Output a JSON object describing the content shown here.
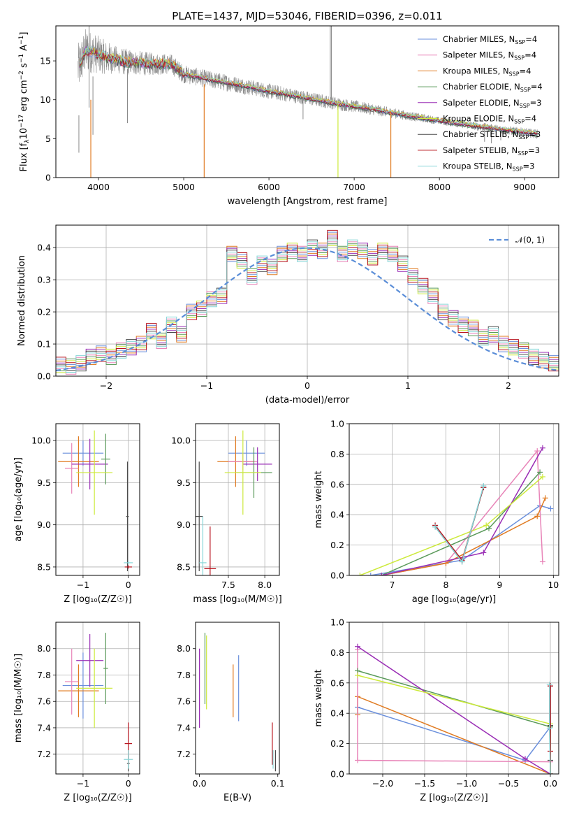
{
  "colors": {
    "chabrier_miles": "#6a8fdc",
    "salpeter_miles": "#e884b8",
    "kroupa_miles": "#e07b22",
    "chabrier_elodie": "#5a9a5a",
    "salpeter_elodie": "#9a2eb5",
    "kroupa_elodie": "#cdea3c",
    "chabrier_stelib": "#4a4a4a",
    "salpeter_stelib": "#b8141e",
    "kroupa_stelib": "#86d6d8",
    "observed": "#8a8a8a",
    "normal": "#5b8ed8"
  },
  "chart_data": [
    {
      "id": "spectrum",
      "type": "line",
      "title": "PLATE=1437, MJD=53046, FIBERID=0396, z=0.011",
      "xlabel": "wavelength [Angstrom, rest frame]",
      "ylabel_parts": [
        "Flux [f",
        "λ",
        "10",
        "−17",
        " erg cm",
        "−2",
        " s",
        "−1",
        " A",
        "−1",
        "]"
      ],
      "xlim": [
        3500,
        9400
      ],
      "ylim": [
        0,
        19.5
      ],
      "xticks": [
        4000,
        5000,
        6000,
        7000,
        8000,
        9000
      ],
      "yticks": [
        0,
        5,
        10,
        15
      ],
      "legend_loc": "upper right",
      "legend": [
        {
          "key": "chabrier_miles",
          "text": "Chabrier MILES, N",
          "sub": "SSP",
          "tail": "=4"
        },
        {
          "key": "salpeter_miles",
          "text": "Salpeter MILES, N",
          "sub": "SSP",
          "tail": "=4"
        },
        {
          "key": "kroupa_miles",
          "text": "Kroupa MILES, N",
          "sub": "SSP",
          "tail": "=4"
        },
        {
          "key": "chabrier_elodie",
          "text": "Chabrier ELODIE, N",
          "sub": "SSP",
          "tail": "=4"
        },
        {
          "key": "salpeter_elodie",
          "text": "Salpeter ELODIE, N",
          "sub": "SSP",
          "tail": "=3"
        },
        {
          "key": "kroupa_elodie",
          "text": "Kroupa ELODIE, N",
          "sub": "SSP",
          "tail": "=4"
        },
        {
          "key": "chabrier_stelib",
          "text": "Chabrier STELIB, N",
          "sub": "SSP",
          "tail": "=3"
        },
        {
          "key": "salpeter_stelib",
          "text": "Salpeter STELIB, N",
          "sub": "SSP",
          "tail": "=3"
        },
        {
          "key": "kroupa_stelib",
          "text": "Kroupa STELIB, N",
          "sub": "SSP",
          "tail": "=3"
        }
      ],
      "observed_trend": [
        [
          3760,
          14.0
        ],
        [
          3850,
          16.3
        ],
        [
          3950,
          16.0
        ],
        [
          4100,
          15.4
        ],
        [
          4300,
          14.9
        ],
        [
          4600,
          14.6
        ],
        [
          4850,
          14.6
        ],
        [
          5000,
          13.3
        ],
        [
          5300,
          12.6
        ],
        [
          5600,
          12.0
        ],
        [
          6000,
          11.1
        ],
        [
          6400,
          10.3
        ],
        [
          6800,
          9.5
        ],
        [
          7200,
          8.8
        ],
        [
          7600,
          8.0
        ],
        [
          8000,
          7.3
        ],
        [
          8500,
          6.5
        ],
        [
          9000,
          5.8
        ],
        [
          9150,
          5.6
        ]
      ],
      "observed_noise": [
        [
          3760,
          3.2
        ],
        [
          4200,
          1.8
        ],
        [
          5000,
          1.2
        ],
        [
          6000,
          1.0
        ],
        [
          7000,
          0.8
        ],
        [
          8000,
          0.5
        ],
        [
          9150,
          0.6
        ]
      ],
      "spikes": [
        {
          "x": 3770,
          "y0": 8,
          "y1": 3.2
        },
        {
          "x": 3890,
          "y0": 9,
          "y1": 19.5
        },
        {
          "x": 3935,
          "y0": 13,
          "y1": 5.5
        },
        {
          "x": 4340,
          "y0": 14,
          "y1": 7.0
        },
        {
          "x": 6400,
          "y0": 11,
          "y1": 7.5
        },
        {
          "x": 6720,
          "y0": 10,
          "y1": 19.5
        },
        {
          "x": 6733,
          "y0": 10,
          "y1": 19.5
        },
        {
          "x": 8530,
          "y0": 6.5,
          "y1": 4.6
        },
        {
          "x": 8610,
          "y0": 6.4,
          "y1": 4.4
        },
        {
          "x": 8720,
          "y0": 6.0,
          "y1": 4.8
        }
      ],
      "model_drops": [
        {
          "key": "kroupa_miles",
          "x": 3910,
          "y0": 10,
          "y1": 0
        },
        {
          "key": "kroupa_miles",
          "x": 5240,
          "y0": 12,
          "y1": 0
        },
        {
          "key": "kroupa_elodie",
          "x": 6810,
          "y0": 9.5,
          "y1": 0
        },
        {
          "key": "kroupa_miles",
          "x": 7430,
          "y0": 8.5,
          "y1": 0
        }
      ]
    },
    {
      "id": "residuals",
      "type": "line",
      "xlabel": "(data-model)/error",
      "ylabel": "Normed distribution",
      "xlim": [
        -2.5,
        2.5
      ],
      "ylim": [
        0,
        0.47
      ],
      "xticks": [
        -2,
        -1,
        0,
        1,
        2
      ],
      "yticks": [
        0.0,
        0.1,
        0.2,
        0.3,
        0.4
      ],
      "grid": true,
      "legend_loc": "upper right",
      "legend_text": "𝒩(0, 1)",
      "bin_width": 0.1,
      "bin_start": -2.6,
      "series_keys": [
        "chabrier_miles",
        "salpeter_miles",
        "kroupa_miles",
        "chabrier_elodie",
        "salpeter_elodie",
        "kroupa_elodie",
        "chabrier_stelib",
        "salpeter_stelib",
        "kroupa_stelib"
      ],
      "base_hist": [
        0.03,
        0.035,
        0.03,
        0.04,
        0.06,
        0.07,
        0.06,
        0.08,
        0.09,
        0.1,
        0.14,
        0.11,
        0.16,
        0.13,
        0.2,
        0.21,
        0.24,
        0.25,
        0.38,
        0.36,
        0.31,
        0.35,
        0.34,
        0.38,
        0.39,
        0.38,
        0.4,
        0.39,
        0.43,
        0.38,
        0.4,
        0.39,
        0.37,
        0.39,
        0.38,
        0.35,
        0.31,
        0.28,
        0.25,
        0.2,
        0.18,
        0.16,
        0.15,
        0.12,
        0.13,
        0.1,
        0.09,
        0.08,
        0.06,
        0.05,
        0.04,
        0.04,
        0.03
      ]
    },
    {
      "id": "age_vs_Z",
      "type": "scatter",
      "xlabel": "Z [log₁₀(Z/Z☉)]",
      "ylabel": "age  [log₁₀(age/yr)]",
      "xlim": [
        -1.6,
        0.25
      ],
      "ylim": [
        8.4,
        10.2
      ],
      "xticks": [
        -1,
        0
      ],
      "yticks": [
        8.5,
        9.0,
        9.5,
        10.0
      ],
      "grid": true,
      "points": [
        {
          "key": "chabrier_miles",
          "x": -1.0,
          "xerr": 0.45,
          "y": 9.85,
          "yerr": 0.15
        },
        {
          "key": "kroupa_miles",
          "x": -1.1,
          "xerr": 0.45,
          "y": 9.75,
          "yerr": 0.3
        },
        {
          "key": "salpeter_miles",
          "x": -1.25,
          "xerr": 0.15,
          "y": 9.67,
          "yerr": 0.3
        },
        {
          "key": "salpeter_elodie",
          "x": -0.85,
          "xerr": 0.4,
          "y": 9.72,
          "yerr": 0.3
        },
        {
          "key": "chabrier_elodie",
          "x": -0.5,
          "xerr": 0.1,
          "y": 9.78,
          "yerr": 0.3
        },
        {
          "key": "kroupa_elodie",
          "x": -0.75,
          "xerr": 0.4,
          "y": 9.62,
          "yerr": 0.5
        },
        {
          "key": "chabrier_stelib",
          "x": -0.02,
          "xerr": 0.03,
          "y": 9.1,
          "yerr": 0.65
        },
        {
          "key": "salpeter_stelib",
          "x": 0.0,
          "xerr": 0.08,
          "y": 8.5,
          "yerr": 0.02
        },
        {
          "key": "kroupa_stelib",
          "x": 0.0,
          "xerr": 0.1,
          "y": 8.55,
          "yerr": 0.02
        }
      ]
    },
    {
      "id": "age_vs_mass",
      "type": "scatter",
      "xlabel": "mass [log₁₀(M/M☉)]",
      "xlim": [
        7.05,
        8.2
      ],
      "ylim": [
        8.4,
        10.2
      ],
      "xticks": [
        7.5,
        8.0
      ],
      "yticks": [
        8.5,
        9.0,
        9.5,
        10.0
      ],
      "grid": true,
      "points": [
        {
          "key": "chabrier_miles",
          "x": 7.75,
          "xerr": 0.25,
          "y": 9.85,
          "yerr": 0.15
        },
        {
          "key": "kroupa_miles",
          "x": 7.6,
          "xerr": 0.25,
          "y": 9.75,
          "yerr": 0.3
        },
        {
          "key": "salpeter_miles",
          "x": 7.7,
          "xerr": 0.2,
          "y": 9.75,
          "yerr": 0.1
        },
        {
          "key": "salpeter_elodie",
          "x": 7.9,
          "xerr": 0.2,
          "y": 9.72,
          "yerr": 0.2
        },
        {
          "key": "chabrier_elodie",
          "x": 7.85,
          "xerr": 0.25,
          "y": 9.62,
          "yerr": 0.3
        },
        {
          "key": "kroupa_elodie",
          "x": 7.7,
          "xerr": 0.25,
          "y": 9.62,
          "yerr": 0.5
        },
        {
          "key": "chabrier_stelib",
          "x": 7.1,
          "xerr": 0.05,
          "y": 9.1,
          "yerr": 0.65
        },
        {
          "key": "salpeter_stelib",
          "x": 7.25,
          "xerr": 0.08,
          "y": 8.48,
          "yerr": 0.5
        },
        {
          "key": "kroupa_stelib",
          "x": 7.15,
          "xerr": 0.05,
          "y": 8.55,
          "yerr": 0.55
        }
      ]
    },
    {
      "id": "weight_vs_age",
      "type": "line",
      "xlabel": "age  [log₁₀(age/yr)]",
      "ylabel": "mass weight",
      "xlim": [
        6.2,
        10.1
      ],
      "ylim": [
        0.0,
        1.0
      ],
      "xticks": [
        7,
        8,
        9,
        10
      ],
      "yticks": [
        0.0,
        0.2,
        0.4,
        0.6,
        0.8,
        1.0
      ],
      "grid": true,
      "series": [
        {
          "key": "chabrier_miles",
          "x": [
            6.6,
            8.3,
            9.75,
            9.95
          ],
          "y": [
            0.0,
            0.1,
            0.46,
            0.44
          ]
        },
        {
          "key": "salpeter_miles",
          "x": [
            6.8,
            8.0,
            9.7,
            9.8
          ],
          "y": [
            0.0,
            0.08,
            0.82,
            0.09
          ]
        },
        {
          "key": "kroupa_miles",
          "x": [
            6.8,
            8.0,
            9.7,
            9.85
          ],
          "y": [
            0.0,
            0.08,
            0.39,
            0.51
          ]
        },
        {
          "key": "chabrier_elodie",
          "x": [
            6.8,
            8.8,
            9.75
          ],
          "y": [
            0.0,
            0.31,
            0.68
          ]
        },
        {
          "key": "salpeter_elodie",
          "x": [
            6.8,
            8.7,
            9.8
          ],
          "y": [
            0.0,
            0.15,
            0.84
          ]
        },
        {
          "key": "kroupa_elodie",
          "x": [
            6.4,
            8.75,
            9.8
          ],
          "y": [
            0.0,
            0.33,
            0.65
          ]
        },
        {
          "key": "chabrier_stelib",
          "x": [
            7.8,
            8.3,
            8.7
          ],
          "y": [
            0.32,
            0.09,
            0.58
          ]
        },
        {
          "key": "salpeter_stelib",
          "x": [
            7.8,
            8.3,
            8.7
          ],
          "y": [
            0.33,
            0.1,
            0.58
          ]
        },
        {
          "key": "kroupa_stelib",
          "x": [
            7.8,
            8.3,
            8.7
          ],
          "y": [
            0.32,
            0.09,
            0.59
          ]
        }
      ]
    },
    {
      "id": "mass_vs_Z",
      "type": "scatter",
      "xlabel": "Z [log₁₀(Z/Z☉)]",
      "ylabel": "mass [log₁₀(M/M☉)]",
      "xlim": [
        -1.6,
        0.25
      ],
      "ylim": [
        7.05,
        8.2
      ],
      "xticks": [
        -1,
        0
      ],
      "yticks": [
        7.2,
        7.4,
        7.6,
        7.8,
        8.0
      ],
      "grid": true,
      "points": [
        {
          "key": "chabrier_miles",
          "x": -1.0,
          "xerr": 0.45,
          "y": 7.72,
          "yerr": 0.25
        },
        {
          "key": "kroupa_miles",
          "x": -1.1,
          "xerr": 0.45,
          "y": 7.68,
          "yerr": 0.2
        },
        {
          "key": "salpeter_miles",
          "x": -1.25,
          "xerr": 0.15,
          "y": 7.75,
          "yerr": 0.25
        },
        {
          "key": "salpeter_elodie",
          "x": -0.85,
          "xerr": 0.3,
          "y": 7.91,
          "yerr": 0.2
        },
        {
          "key": "chabrier_elodie",
          "x": -0.5,
          "xerr": 0.05,
          "y": 7.85,
          "yerr": 0.27
        },
        {
          "key": "kroupa_elodie",
          "x": -0.75,
          "xerr": 0.4,
          "y": 7.7,
          "yerr": 0.3
        },
        {
          "key": "chabrier_stelib",
          "x": 0.0,
          "xerr": 0.03,
          "y": 7.13,
          "yerr": 0.06
        },
        {
          "key": "salpeter_stelib",
          "x": 0.0,
          "xerr": 0.08,
          "y": 7.28,
          "yerr": 0.16
        },
        {
          "key": "kroupa_stelib",
          "x": 0.0,
          "xerr": 0.1,
          "y": 7.16,
          "yerr": 0.07
        }
      ]
    },
    {
      "id": "mass_vs_ebv",
      "type": "scatter",
      "xlabel": "E(B-V)",
      "xlim": [
        -0.005,
        0.102
      ],
      "ylim": [
        7.05,
        8.2
      ],
      "xticks": [
        0.0,
        0.1
      ],
      "yticks": [
        7.2,
        7.4,
        7.6,
        7.8,
        8.0
      ],
      "grid": false,
      "points": [
        {
          "key": "salpeter_elodie",
          "x": 0.0,
          "y": 7.7,
          "yerr": 0.3
        },
        {
          "key": "chabrier_elodie",
          "x": 0.007,
          "y": 7.85,
          "yerr": 0.27
        },
        {
          "key": "kroupa_elodie",
          "x": 0.009,
          "y": 7.82,
          "yerr": 0.28
        },
        {
          "key": "kroupa_miles",
          "x": 0.043,
          "y": 7.68,
          "yerr": 0.2
        },
        {
          "key": "chabrier_miles",
          "x": 0.05,
          "y": 7.7,
          "yerr": 0.25
        },
        {
          "key": "salpeter_stelib",
          "x": 0.093,
          "y": 7.28,
          "yerr": 0.16
        },
        {
          "key": "kroupa_stelib",
          "x": 0.094,
          "y": 7.16,
          "yerr": 0.07
        },
        {
          "key": "chabrier_stelib",
          "x": 0.097,
          "y": 7.15,
          "yerr": 0.08
        }
      ]
    },
    {
      "id": "weight_vs_Z",
      "type": "line",
      "xlabel": "Z [log₁₀(Z/Z☉)]",
      "ylabel": "mass weight",
      "xlim": [
        -2.4,
        0.1
      ],
      "ylim": [
        0.0,
        1.0
      ],
      "xticks": [
        -2.0,
        -1.5,
        -1.0,
        -0.5,
        0.0
      ],
      "yticks": [
        0.0,
        0.2,
        0.4,
        0.6,
        0.8,
        1.0
      ],
      "grid": true,
      "series": [
        {
          "key": "chabrier_miles",
          "x": [
            -2.3,
            -0.3,
            0.0
          ],
          "y": [
            0.44,
            0.09,
            0.31
          ]
        },
        {
          "key": "kroupa_miles",
          "x": [
            -2.3,
            -2.3,
            0.0
          ],
          "y": [
            0.39,
            0.51,
            0.0
          ]
        },
        {
          "key": "salpeter_miles",
          "x": [
            -2.3,
            -2.3,
            0.0,
            0.0
          ],
          "y": [
            0.82,
            0.09,
            0.08,
            0.0
          ]
        },
        {
          "key": "chabrier_elodie",
          "x": [
            -2.3,
            0.0,
            0.0
          ],
          "y": [
            0.68,
            0.31,
            0.0
          ]
        },
        {
          "key": "salpeter_elodie",
          "x": [
            -2.3,
            -0.3,
            0.0
          ],
          "y": [
            0.84,
            0.1,
            0.0
          ]
        },
        {
          "key": "kroupa_elodie",
          "x": [
            -2.3,
            0.0,
            0.0
          ],
          "y": [
            0.65,
            0.33,
            0.0
          ]
        },
        {
          "key": "chabrier_stelib",
          "x": [
            0.0,
            0.0,
            0.0
          ],
          "y": [
            0.58,
            0.32,
            0.09
          ]
        },
        {
          "key": "salpeter_stelib",
          "x": [
            0.0,
            0.0,
            0.0
          ],
          "y": [
            0.58,
            0.15,
            0.0
          ]
        },
        {
          "key": "kroupa_stelib",
          "x": [
            -0.01,
            -0.01,
            0.0
          ],
          "y": [
            0.59,
            0.3,
            0.0
          ]
        }
      ]
    }
  ]
}
